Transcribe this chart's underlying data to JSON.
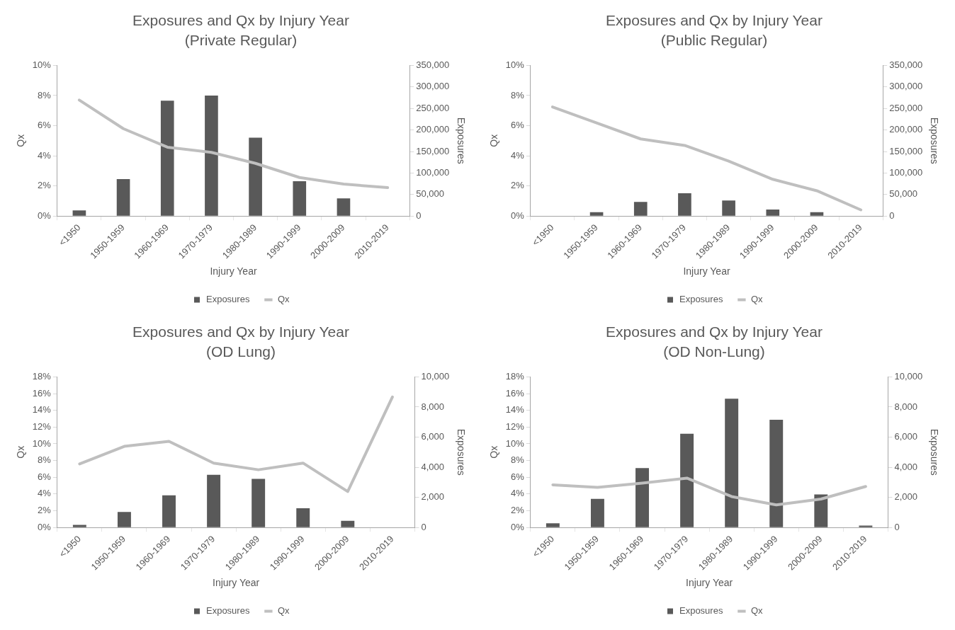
{
  "chart_data": [
    {
      "type": "bar",
      "title": "Exposures and Qx by Injury Year",
      "subtitle": "(Private Regular)",
      "xlabel": "Injury Year",
      "ylabel": "Qx",
      "y2label": "Exposures",
      "categories": [
        "<1950",
        "1950-1959",
        "1960-1969",
        "1970-1979",
        "1980-1989",
        "1990-1999",
        "2000-2009",
        "2010-2019"
      ],
      "series": [
        {
          "name": "Exposures",
          "axis": "y2",
          "color": "#595959",
          "values": [
            13000,
            86000,
            268000,
            280000,
            182000,
            81000,
            41000,
            0
          ]
        },
        {
          "name": "Qx",
          "type": "line",
          "axis": "y",
          "color": "#bfbfbf",
          "values": [
            7.7,
            5.8,
            4.57,
            4.23,
            3.5,
            2.56,
            2.12,
            1.89
          ]
        }
      ],
      "ylim": [
        0,
        10
      ],
      "yticks": [
        {
          "value": 0,
          "label": "0%"
        },
        {
          "value": 2,
          "label": "2%"
        },
        {
          "value": 4,
          "label": "4%"
        },
        {
          "value": 6,
          "label": "6%"
        },
        {
          "value": 8,
          "label": "8%"
        },
        {
          "value": 10,
          "label": "10%"
        }
      ],
      "y2lim": [
        0,
        350000
      ],
      "y2ticks": [
        {
          "value": 0,
          "label": "0"
        },
        {
          "value": 50000,
          "label": "50,000"
        },
        {
          "value": 100000,
          "label": "100,000"
        },
        {
          "value": 150000,
          "label": "150,000"
        },
        {
          "value": 200000,
          "label": "200,000"
        },
        {
          "value": 250000,
          "label": "250,000"
        },
        {
          "value": 300000,
          "label": "300,000"
        },
        {
          "value": 350000,
          "label": "350,000"
        }
      ],
      "legend": "bottom",
      "grid": false,
      "marker": "none",
      "line_style": "solid"
    },
    {
      "type": "bar",
      "title": "Exposures and Qx by Injury Year",
      "subtitle": "(Public Regular)",
      "xlabel": "Injury Year",
      "ylabel": "Qx",
      "y2label": "Exposures",
      "categories": [
        "<1950",
        "1950-1959",
        "1960-1969",
        "1970-1979",
        "1980-1989",
        "1990-1999",
        "2000-2009",
        "2010-2019"
      ],
      "series": [
        {
          "name": "Exposures",
          "axis": "y2",
          "color": "#595959",
          "values": [
            0,
            9000,
            33000,
            53000,
            36000,
            15000,
            9000,
            0
          ]
        },
        {
          "name": "Qx",
          "type": "line",
          "axis": "y",
          "color": "#bfbfbf",
          "values": [
            7.24,
            6.18,
            5.12,
            4.69,
            3.65,
            2.44,
            1.68,
            0.41
          ]
        }
      ],
      "ylim": [
        0,
        10
      ],
      "yticks": [
        {
          "value": 0,
          "label": "0%"
        },
        {
          "value": 2,
          "label": "2%"
        },
        {
          "value": 4,
          "label": "4%"
        },
        {
          "value": 6,
          "label": "6%"
        },
        {
          "value": 8,
          "label": "8%"
        },
        {
          "value": 10,
          "label": "10%"
        }
      ],
      "y2lim": [
        0,
        350000
      ],
      "y2ticks": [
        {
          "value": 0,
          "label": "0"
        },
        {
          "value": 50000,
          "label": "50,000"
        },
        {
          "value": 100000,
          "label": "100,000"
        },
        {
          "value": 150000,
          "label": "150,000"
        },
        {
          "value": 200000,
          "label": "200,000"
        },
        {
          "value": 250000,
          "label": "250,000"
        },
        {
          "value": 300000,
          "label": "300,000"
        },
        {
          "value": 350000,
          "label": "350,000"
        }
      ],
      "legend": "bottom",
      "grid": false,
      "marker": "none",
      "line_style": "solid"
    },
    {
      "type": "bar",
      "title": "Exposures and Qx by Injury Year",
      "subtitle": "(OD Lung)",
      "xlabel": "Injury Year",
      "ylabel": "Qx",
      "y2label": "Exposures",
      "categories": [
        "<1950",
        "1950-1959",
        "1960-1969",
        "1970-1979",
        "1980-1989",
        "1990-1999",
        "2000-2009",
        "2010-2019"
      ],
      "series": [
        {
          "name": "Exposures",
          "axis": "y2",
          "color": "#595959",
          "values": [
            170,
            1030,
            2140,
            3500,
            3230,
            1280,
            440,
            0
          ]
        },
        {
          "name": "Qx",
          "type": "line",
          "axis": "y",
          "color": "#bfbfbf",
          "values": [
            7.6,
            9.7,
            10.3,
            7.7,
            6.9,
            7.7,
            4.3,
            15.6
          ]
        }
      ],
      "ylim": [
        0,
        18
      ],
      "yticks": [
        {
          "value": 0,
          "label": "0%"
        },
        {
          "value": 2,
          "label": "2%"
        },
        {
          "value": 4,
          "label": "4%"
        },
        {
          "value": 6,
          "label": "6%"
        },
        {
          "value": 8,
          "label": "8%"
        },
        {
          "value": 10,
          "label": "10%"
        },
        {
          "value": 12,
          "label": "12%"
        },
        {
          "value": 14,
          "label": "14%"
        },
        {
          "value": 16,
          "label": "16%"
        },
        {
          "value": 18,
          "label": "18%"
        }
      ],
      "y2lim": [
        0,
        10000
      ],
      "y2ticks": [
        {
          "value": 0,
          "label": "0"
        },
        {
          "value": 2000,
          "label": "2,000"
        },
        {
          "value": 4000,
          "label": "4,000"
        },
        {
          "value": 6000,
          "label": "6,000"
        },
        {
          "value": 8000,
          "label": "8,000"
        },
        {
          "value": 10000,
          "label": "10,000"
        }
      ],
      "legend": "bottom",
      "grid": false,
      "marker": "none",
      "line_style": "solid"
    },
    {
      "type": "bar",
      "title": "Exposures and Qx by Injury Year",
      "subtitle": "(OD Non-Lung)",
      "xlabel": "Injury Year",
      "ylabel": "Qx",
      "y2label": "Exposures",
      "categories": [
        "<1950",
        "1950-1959",
        "1960-1969",
        "1970-1979",
        "1980-1989",
        "1990-1999",
        "2000-2009",
        "2010-2019"
      ],
      "series": [
        {
          "name": "Exposures",
          "axis": "y2",
          "color": "#595959",
          "values": [
            280,
            1900,
            3950,
            6220,
            8550,
            7150,
            2200,
            130
          ]
        },
        {
          "name": "Qx",
          "type": "line",
          "axis": "y",
          "color": "#bfbfbf",
          "values": [
            5.1,
            4.8,
            5.3,
            5.9,
            3.7,
            2.7,
            3.4,
            4.9
          ]
        }
      ],
      "ylim": [
        0,
        18
      ],
      "yticks": [
        {
          "value": 0,
          "label": "0%"
        },
        {
          "value": 2,
          "label": "2%"
        },
        {
          "value": 4,
          "label": "4%"
        },
        {
          "value": 6,
          "label": "6%"
        },
        {
          "value": 8,
          "label": "8%"
        },
        {
          "value": 10,
          "label": "10%"
        },
        {
          "value": 12,
          "label": "12%"
        },
        {
          "value": 14,
          "label": "14%"
        },
        {
          "value": 16,
          "label": "16%"
        },
        {
          "value": 18,
          "label": "18%"
        }
      ],
      "y2lim": [
        0,
        10000
      ],
      "y2ticks": [
        {
          "value": 0,
          "label": "0"
        },
        {
          "value": 2000,
          "label": "2,000"
        },
        {
          "value": 4000,
          "label": "4,000"
        },
        {
          "value": 6000,
          "label": "6,000"
        },
        {
          "value": 8000,
          "label": "8,000"
        },
        {
          "value": 10000,
          "label": "10,000"
        }
      ],
      "legend": "bottom",
      "grid": false,
      "marker": "none",
      "line_style": "solid"
    }
  ]
}
